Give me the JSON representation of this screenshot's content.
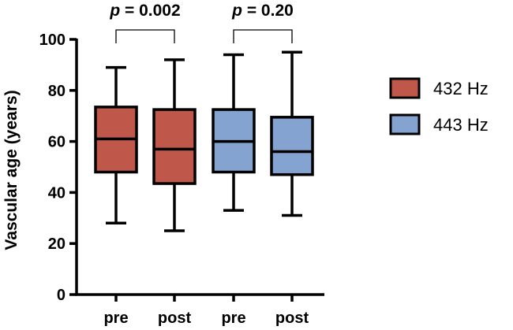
{
  "chart_data": {
    "type": "box",
    "ylabel": "Vascular age (years)",
    "ylim": [
      0,
      100
    ],
    "yticks": [
      0,
      20,
      40,
      60,
      80,
      100
    ],
    "categories": [
      "pre",
      "post",
      "pre",
      "post"
    ],
    "boxes": [
      {
        "group": "432 Hz",
        "label": "pre",
        "min": 28,
        "q1": 48,
        "median": 61,
        "q3": 73.5,
        "max": 89,
        "color": "#c0574b"
      },
      {
        "group": "432 Hz",
        "label": "post",
        "min": 25,
        "q1": 43.5,
        "median": 57,
        "q3": 72.5,
        "max": 92,
        "color": "#c0574b"
      },
      {
        "group": "443 Hz",
        "label": "pre",
        "min": 33,
        "q1": 48,
        "median": 60,
        "q3": 72.5,
        "max": 94,
        "color": "#84a3d1"
      },
      {
        "group": "443 Hz",
        "label": "post",
        "min": 31,
        "q1": 47,
        "median": 56,
        "q3": 69.5,
        "max": 95,
        "color": "#84a3d1"
      }
    ],
    "annotations": [
      {
        "text": "p = 0.002",
        "between": [
          0,
          1
        ]
      },
      {
        "text": "p = 0.20",
        "between": [
          2,
          3
        ]
      }
    ],
    "legend": {
      "position": "right",
      "items": [
        {
          "label": "432 Hz",
          "color": "#c0574b"
        },
        {
          "label": "443 Hz",
          "color": "#84a3d1"
        }
      ]
    },
    "grid": false
  }
}
